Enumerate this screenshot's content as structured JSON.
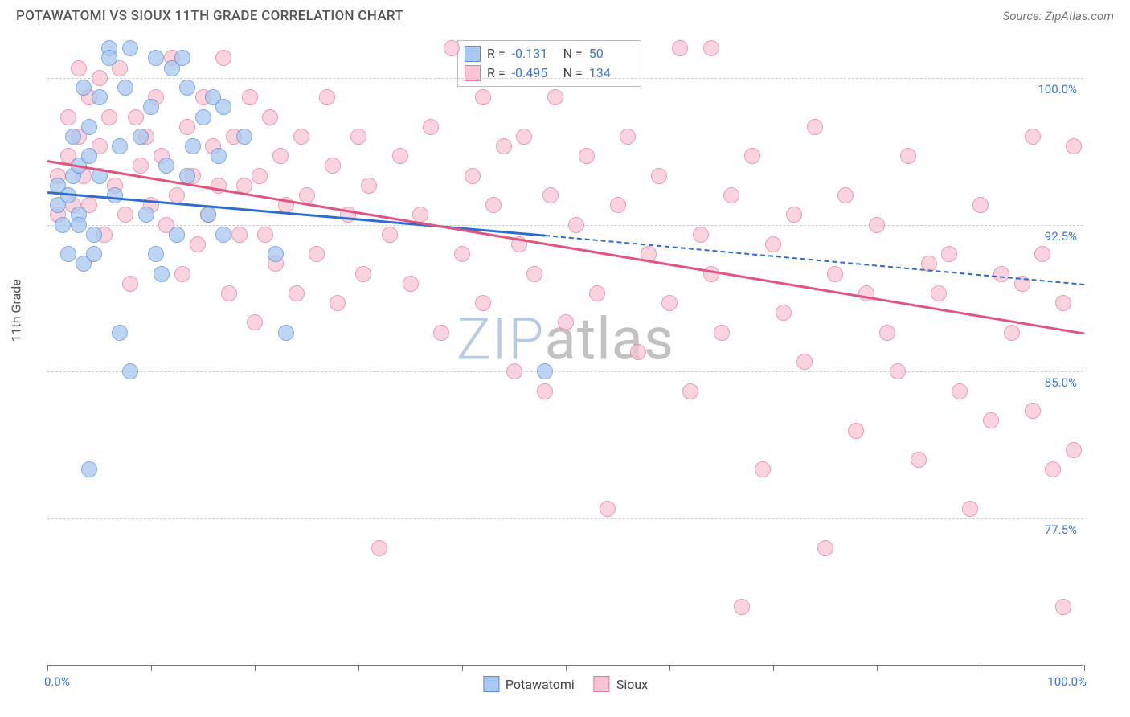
{
  "header": {
    "title": "POTAWATOMI VS SIOUX 11TH GRADE CORRELATION CHART",
    "source_label": "Source: ZipAtlas.com"
  },
  "axis": {
    "y_title": "11th Grade",
    "x_min_label": "0.0%",
    "x_max_label": "100.0%",
    "y_ticks": [
      {
        "value": 100.0,
        "label": "100.0%"
      },
      {
        "value": 92.5,
        "label": "92.5%"
      },
      {
        "value": 85.0,
        "label": "85.0%"
      },
      {
        "value": 77.5,
        "label": "77.5%"
      }
    ],
    "x_tick_positions": [
      0,
      10,
      20,
      30,
      40,
      50,
      60,
      70,
      80,
      90,
      100
    ],
    "xlim": [
      0,
      100
    ],
    "ylim": [
      70,
      102
    ]
  },
  "watermark": {
    "part1": "ZIP",
    "part2": "atlas"
  },
  "series": [
    {
      "name": "Potawatomi",
      "color_fill": "#a8c8f0",
      "color_stroke": "#5b8fd6",
      "R": "-0.131",
      "N": "50",
      "marker_radius": 10,
      "trend": {
        "x1": 0,
        "y1": 94.2,
        "x2_solid": 48,
        "y2_solid": 92.0,
        "x2": 100,
        "y2": 89.5,
        "color": "#2e6dd0"
      },
      "points": [
        [
          1,
          93.5
        ],
        [
          1,
          94.5
        ],
        [
          1.5,
          92.5
        ],
        [
          2,
          94
        ],
        [
          2,
          91
        ],
        [
          2.5,
          97
        ],
        [
          2.5,
          95
        ],
        [
          3,
          93
        ],
        [
          3,
          92.5
        ],
        [
          3,
          95.5
        ],
        [
          3.5,
          99.5
        ],
        [
          3.5,
          90.5
        ],
        [
          4,
          96
        ],
        [
          4,
          97.5
        ],
        [
          4.5,
          92
        ],
        [
          4.5,
          91
        ],
        [
          5,
          99
        ],
        [
          5,
          95
        ],
        [
          6,
          101.5
        ],
        [
          6,
          101
        ],
        [
          6.5,
          94
        ],
        [
          7,
          96.5
        ],
        [
          7,
          87
        ],
        [
          7.5,
          99.5
        ],
        [
          8,
          85
        ],
        [
          8,
          101.5
        ],
        [
          9,
          97
        ],
        [
          9.5,
          93
        ],
        [
          10,
          98.5
        ],
        [
          10.5,
          101
        ],
        [
          10.5,
          91
        ],
        [
          11,
          90
        ],
        [
          11.5,
          95.5
        ],
        [
          12,
          100.5
        ],
        [
          12.5,
          92
        ],
        [
          13,
          101
        ],
        [
          13.5,
          95
        ],
        [
          13.5,
          99.5
        ],
        [
          14,
          96.5
        ],
        [
          15,
          98
        ],
        [
          15.5,
          93
        ],
        [
          16,
          99
        ],
        [
          16.5,
          96
        ],
        [
          17,
          98.5
        ],
        [
          17,
          92
        ],
        [
          19,
          97
        ],
        [
          22,
          91
        ],
        [
          23,
          87
        ],
        [
          4,
          80
        ],
        [
          48,
          85
        ]
      ]
    },
    {
      "name": "Sioux",
      "color_fill": "#f7c5d3",
      "color_stroke": "#e67a9c",
      "R": "-0.495",
      "N": "134",
      "marker_radius": 10,
      "trend": {
        "x1": 0,
        "y1": 95.8,
        "x2_solid": 100,
        "y2_solid": 87.0,
        "x2": 100,
        "y2": 87.0,
        "color": "#e0557f"
      },
      "points": [
        [
          1,
          95
        ],
        [
          1,
          93
        ],
        [
          2,
          98
        ],
        [
          2,
          96
        ],
        [
          2.5,
          93.5
        ],
        [
          3,
          100.5
        ],
        [
          3,
          97
        ],
        [
          3.5,
          95
        ],
        [
          4,
          99
        ],
        [
          4,
          93.5
        ],
        [
          5,
          100
        ],
        [
          5,
          96.5
        ],
        [
          5.5,
          92
        ],
        [
          6,
          98
        ],
        [
          6.5,
          94.5
        ],
        [
          7,
          100.5
        ],
        [
          7.5,
          93
        ],
        [
          8,
          89.5
        ],
        [
          8.5,
          98
        ],
        [
          9,
          95.5
        ],
        [
          9.5,
          97
        ],
        [
          10,
          93.5
        ],
        [
          10.5,
          99
        ],
        [
          11,
          96
        ],
        [
          11.5,
          92.5
        ],
        [
          12,
          101
        ],
        [
          12.5,
          94
        ],
        [
          13,
          90
        ],
        [
          13.5,
          97.5
        ],
        [
          14,
          95
        ],
        [
          14.5,
          91.5
        ],
        [
          15,
          99
        ],
        [
          15.5,
          93
        ],
        [
          16,
          96.5
        ],
        [
          16.5,
          94.5
        ],
        [
          17,
          101
        ],
        [
          17.5,
          89
        ],
        [
          18,
          97
        ],
        [
          18.5,
          92
        ],
        [
          19,
          94.5
        ],
        [
          19.5,
          99
        ],
        [
          20,
          87.5
        ],
        [
          20.5,
          95
        ],
        [
          21,
          92
        ],
        [
          21.5,
          98
        ],
        [
          22,
          90.5
        ],
        [
          22.5,
          96
        ],
        [
          23,
          93.5
        ],
        [
          24,
          89
        ],
        [
          24.5,
          97
        ],
        [
          25,
          94
        ],
        [
          26,
          91
        ],
        [
          27,
          99
        ],
        [
          27.5,
          95.5
        ],
        [
          28,
          88.5
        ],
        [
          29,
          93
        ],
        [
          30,
          97
        ],
        [
          30.5,
          90
        ],
        [
          31,
          94.5
        ],
        [
          32,
          76
        ],
        [
          33,
          92
        ],
        [
          34,
          96
        ],
        [
          35,
          89.5
        ],
        [
          36,
          93
        ],
        [
          37,
          97.5
        ],
        [
          38,
          87
        ],
        [
          39,
          101.5
        ],
        [
          40,
          91
        ],
        [
          41,
          95
        ],
        [
          42,
          88.5
        ],
        [
          42,
          99
        ],
        [
          43,
          93.5
        ],
        [
          44,
          96.5
        ],
        [
          45,
          85
        ],
        [
          45.5,
          91.5
        ],
        [
          46,
          97
        ],
        [
          47,
          90
        ],
        [
          48,
          84
        ],
        [
          48.5,
          94
        ],
        [
          49,
          99
        ],
        [
          50,
          87.5
        ],
        [
          51,
          92.5
        ],
        [
          52,
          96
        ],
        [
          53,
          89
        ],
        [
          54,
          78
        ],
        [
          55,
          93.5
        ],
        [
          56,
          97
        ],
        [
          57,
          86
        ],
        [
          58,
          91
        ],
        [
          59,
          95
        ],
        [
          60,
          88.5
        ],
        [
          61,
          101.5
        ],
        [
          62,
          84
        ],
        [
          63,
          92
        ],
        [
          64,
          90
        ],
        [
          65,
          87
        ],
        [
          66,
          94
        ],
        [
          67,
          73
        ],
        [
          68,
          96
        ],
        [
          69,
          80
        ],
        [
          70,
          91.5
        ],
        [
          71,
          88
        ],
        [
          72,
          93
        ],
        [
          73,
          85.5
        ],
        [
          74,
          97.5
        ],
        [
          75,
          76
        ],
        [
          76,
          90
        ],
        [
          77,
          94
        ],
        [
          78,
          82
        ],
        [
          79,
          89
        ],
        [
          80,
          92.5
        ],
        [
          81,
          87
        ],
        [
          82,
          85
        ],
        [
          83,
          96
        ],
        [
          84,
          80.5
        ],
        [
          85,
          90.5
        ],
        [
          86,
          89
        ],
        [
          87,
          91
        ],
        [
          88,
          84
        ],
        [
          89,
          78
        ],
        [
          90,
          93.5
        ],
        [
          91,
          82.5
        ],
        [
          92,
          90
        ],
        [
          93,
          87
        ],
        [
          94,
          89.5
        ],
        [
          95,
          83
        ],
        [
          96,
          91
        ],
        [
          97,
          80
        ],
        [
          98,
          88.5
        ],
        [
          98,
          73
        ],
        [
          99,
          96.5
        ],
        [
          99,
          81
        ],
        [
          95,
          97
        ],
        [
          64,
          101.5
        ]
      ]
    }
  ],
  "legend_labels": {
    "R": "R =",
    "N": "N ="
  },
  "bottom_legend": [
    {
      "label": "Potawatomi",
      "fill": "#a8c8f0",
      "stroke": "#5b8fd6"
    },
    {
      "label": "Sioux",
      "fill": "#f7c5d3",
      "stroke": "#e67a9c"
    }
  ],
  "colors": {
    "text_subtle": "#555",
    "axis_value": "#3b78d8",
    "grid": "#cccccc",
    "background": "#ffffff"
  }
}
